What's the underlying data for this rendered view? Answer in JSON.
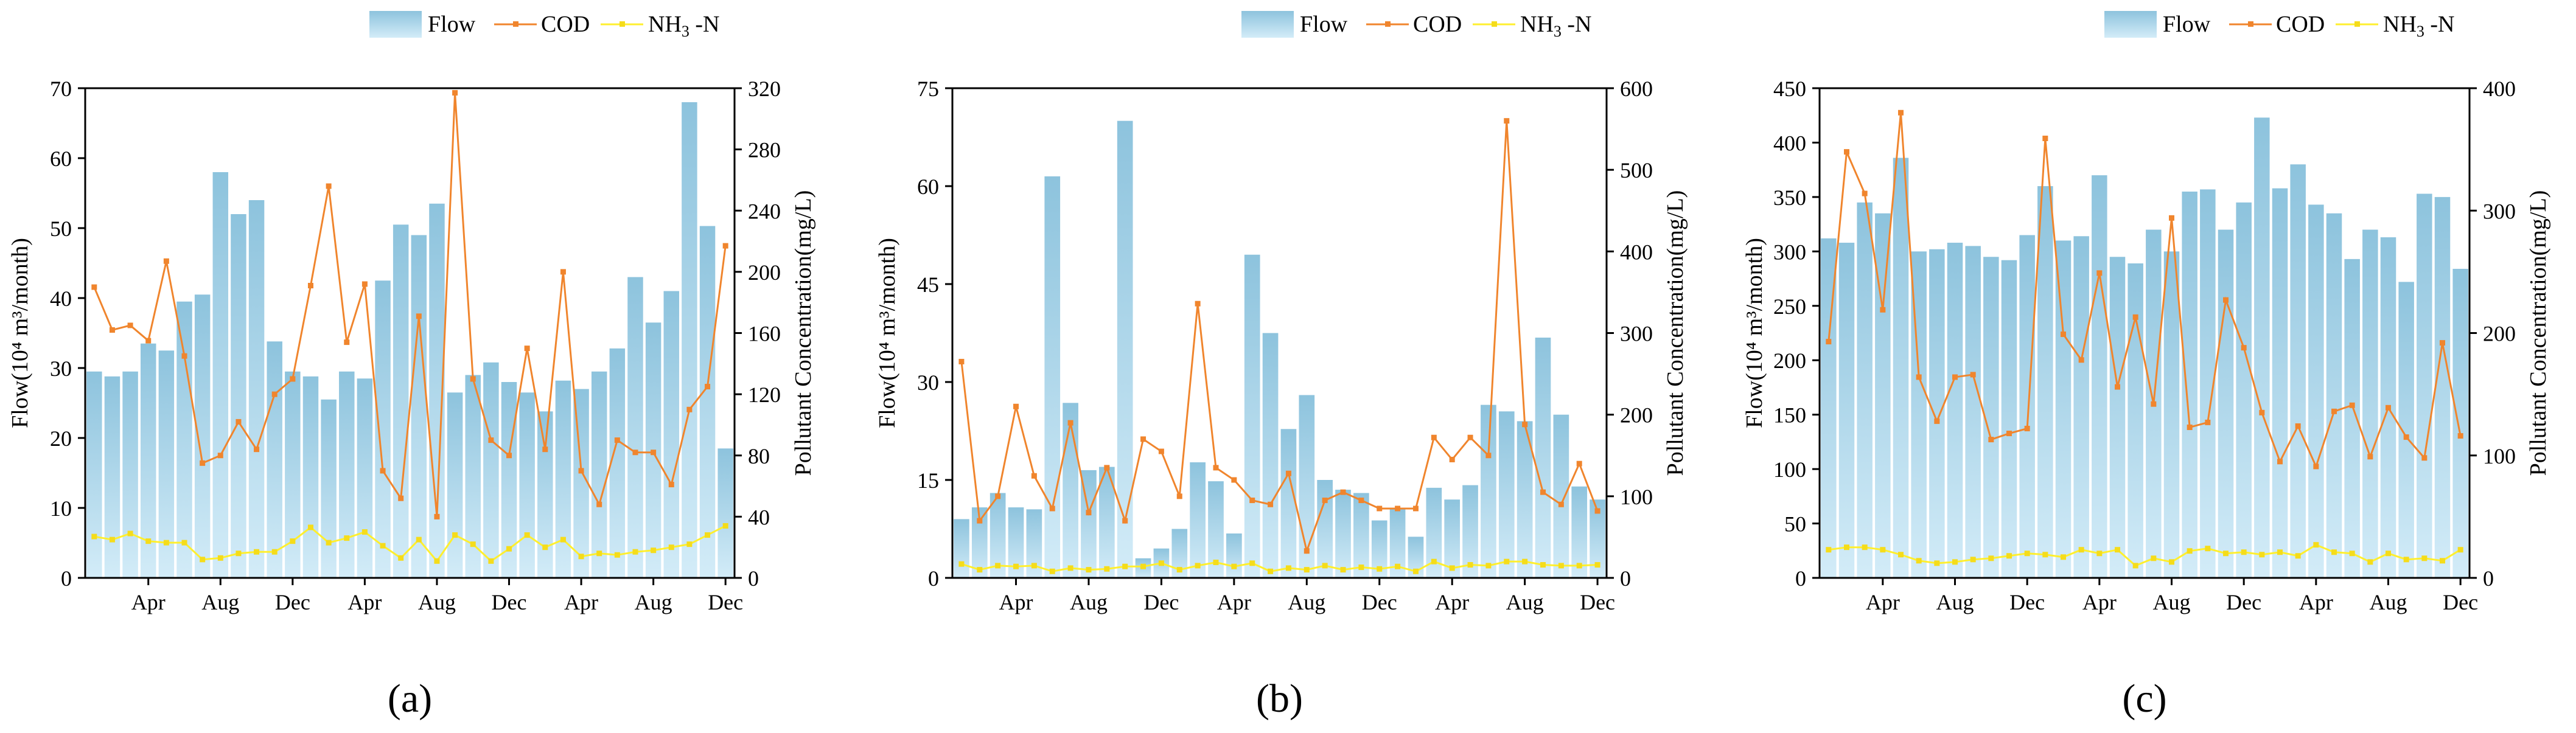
{
  "figure": {
    "legend": {
      "flow": "Flow",
      "cod": "COD",
      "nh3_main": "NH",
      "nh3_sub": "3",
      "nh3_tail": "-N"
    },
    "colors": {
      "bar_top": "#8dc3dd",
      "bar_bottom": "#d3ecf8",
      "bar_edge": "#7fb7d3",
      "cod": "#f0852d",
      "nh3": "#ffef2e",
      "nh3_marker": "#f5dc1a"
    }
  },
  "chart_data": [
    {
      "type": "bar+line",
      "panel_label": "(a)",
      "xtick_labels": [
        "Apr",
        "Aug",
        "Dec",
        "Apr",
        "Aug",
        "Dec",
        "Apr",
        "Aug",
        "Dec"
      ],
      "xtick_indices": [
        3,
        7,
        11,
        15,
        19,
        23,
        27,
        31,
        35
      ],
      "ylabel_left": "Flow(10⁴ m³/month)",
      "ylabel_right": "Pollutant Concentration(mg/L)",
      "ylim_left": [
        0,
        70
      ],
      "yticks_left": [
        0,
        10,
        20,
        30,
        40,
        50,
        60,
        70
      ],
      "ylim_right": [
        0,
        320
      ],
      "yticks_right": [
        0,
        40,
        80,
        120,
        160,
        200,
        240,
        280,
        320
      ],
      "series": [
        {
          "name": "Flow",
          "axis": "left",
          "kind": "bar",
          "values": [
            29.5,
            28.8,
            29.5,
            33.5,
            32.5,
            39.5,
            40.5,
            58.0,
            52.0,
            54.0,
            33.8,
            29.5,
            28.8,
            25.5,
            29.5,
            28.5,
            42.5,
            50.5,
            49.0,
            53.5,
            26.5,
            29.0,
            30.8,
            28.0,
            26.5,
            23.8,
            28.2,
            27.0,
            29.5,
            32.8,
            43.0,
            36.5,
            41.0,
            68.0,
            50.3,
            18.5
          ]
        },
        {
          "name": "COD",
          "axis": "right",
          "kind": "line",
          "values": [
            190,
            162,
            165,
            155,
            207,
            145,
            75,
            80,
            102,
            84,
            120,
            130,
            191,
            256,
            154,
            192,
            70,
            52,
            171,
            40,
            317,
            130,
            90,
            80,
            150,
            84,
            200,
            70,
            48,
            90,
            82,
            82,
            61,
            110,
            125,
            217
          ]
        },
        {
          "name": "NH3-N",
          "axis": "right",
          "kind": "line",
          "values": [
            27,
            25,
            29,
            24,
            23,
            23,
            12,
            13,
            16,
            17,
            17,
            24,
            33,
            23,
            26,
            30,
            21,
            13,
            25,
            11,
            28,
            22,
            11,
            19,
            28,
            20,
            25,
            14,
            16,
            15,
            17,
            18,
            20,
            22,
            28,
            34
          ]
        }
      ]
    },
    {
      "type": "bar+line",
      "panel_label": "(b)",
      "xtick_labels": [
        "Apr",
        "Aug",
        "Dec",
        "Apr",
        "Aug",
        "Dec",
        "Apr",
        "Aug",
        "Dec"
      ],
      "xtick_indices": [
        3,
        7,
        11,
        15,
        19,
        23,
        27,
        31,
        35
      ],
      "ylabel_left": "Flow(10⁴ m³/month)",
      "ylabel_right": "Pollutant Concentration(mg/L)",
      "ylim_left": [
        0,
        75
      ],
      "yticks_left": [
        0,
        15,
        30,
        45,
        60,
        75
      ],
      "ylim_right": [
        0,
        600
      ],
      "yticks_right": [
        0,
        100,
        200,
        300,
        400,
        500,
        600
      ],
      "series": [
        {
          "name": "Flow",
          "axis": "left",
          "kind": "bar",
          "values": [
            9.0,
            10.8,
            13.0,
            10.8,
            10.5,
            61.5,
            26.8,
            16.5,
            17.0,
            70.0,
            3.0,
            4.5,
            7.5,
            17.7,
            14.8,
            6.8,
            49.5,
            37.5,
            22.8,
            28.0,
            15.0,
            13.5,
            13.0,
            8.8,
            10.5,
            6.3,
            13.8,
            12.0,
            14.2,
            26.5,
            25.5,
            24.0,
            36.8,
            25.0,
            14.0,
            12.0
          ]
        },
        {
          "name": "COD",
          "axis": "right",
          "kind": "line",
          "values": [
            265,
            70,
            100,
            210,
            125,
            85,
            190,
            80,
            135,
            70,
            170,
            155,
            100,
            336,
            135,
            120,
            95,
            90,
            128,
            33,
            95,
            105,
            95,
            85,
            85,
            85,
            172,
            145,
            172,
            150,
            560,
            188,
            105,
            90,
            140,
            82
          ]
        },
        {
          "name": "NH3-N",
          "axis": "right",
          "kind": "line",
          "values": [
            17,
            10,
            15,
            14,
            15,
            8,
            12,
            10,
            11,
            14,
            14,
            18,
            10,
            15,
            19,
            14,
            18,
            8,
            12,
            10,
            15,
            10,
            13,
            11,
            14,
            8,
            20,
            12,
            16,
            15,
            20,
            20,
            16,
            15,
            15,
            16
          ]
        }
      ]
    },
    {
      "type": "bar+line",
      "panel_label": "(c)",
      "xtick_labels": [
        "Apr",
        "Aug",
        "Dec",
        "Apr",
        "Aug",
        "Dec",
        "Apr",
        "Aug",
        "Dec"
      ],
      "xtick_indices": [
        3,
        7,
        11,
        15,
        19,
        23,
        27,
        31,
        35
      ],
      "ylabel_left": "Flow(10⁴ m³/month)",
      "ylabel_right": "Pollutant Concentration(mg/L)",
      "ylim_left": [
        0,
        450
      ],
      "yticks_left": [
        0,
        50,
        100,
        150,
        200,
        250,
        300,
        350,
        400,
        450
      ],
      "ylim_right": [
        0,
        400
      ],
      "yticks_right": [
        0,
        100,
        200,
        300,
        400
      ],
      "series": [
        {
          "name": "Flow",
          "axis": "left",
          "kind": "bar",
          "values": [
            312,
            308,
            345,
            335,
            386,
            300,
            302,
            308,
            305,
            295,
            292,
            315,
            360,
            310,
            314,
            370,
            295,
            289,
            320,
            300,
            355,
            357,
            320,
            345,
            423,
            358,
            380,
            343,
            335,
            293,
            320,
            313,
            272,
            353,
            350,
            284
          ]
        },
        {
          "name": "COD",
          "axis": "right",
          "kind": "line",
          "values": [
            193,
            348,
            314,
            219,
            380,
            164,
            128,
            164,
            166,
            113,
            118,
            122,
            359,
            199,
            178,
            249,
            156,
            213,
            142,
            294,
            123,
            127,
            227,
            188,
            135,
            95,
            124,
            91,
            136,
            141,
            99,
            139,
            115,
            98,
            192,
            116
          ]
        },
        {
          "name": "NH3-N",
          "axis": "right",
          "kind": "line",
          "values": [
            23,
            25,
            25,
            23,
            19,
            14,
            12,
            13,
            15,
            16,
            18,
            20,
            19,
            17,
            23,
            20,
            23,
            10,
            16,
            13,
            22,
            24,
            20,
            21,
            19,
            21,
            18,
            27,
            21,
            20,
            13,
            20,
            15,
            16,
            14,
            23
          ]
        }
      ]
    }
  ]
}
